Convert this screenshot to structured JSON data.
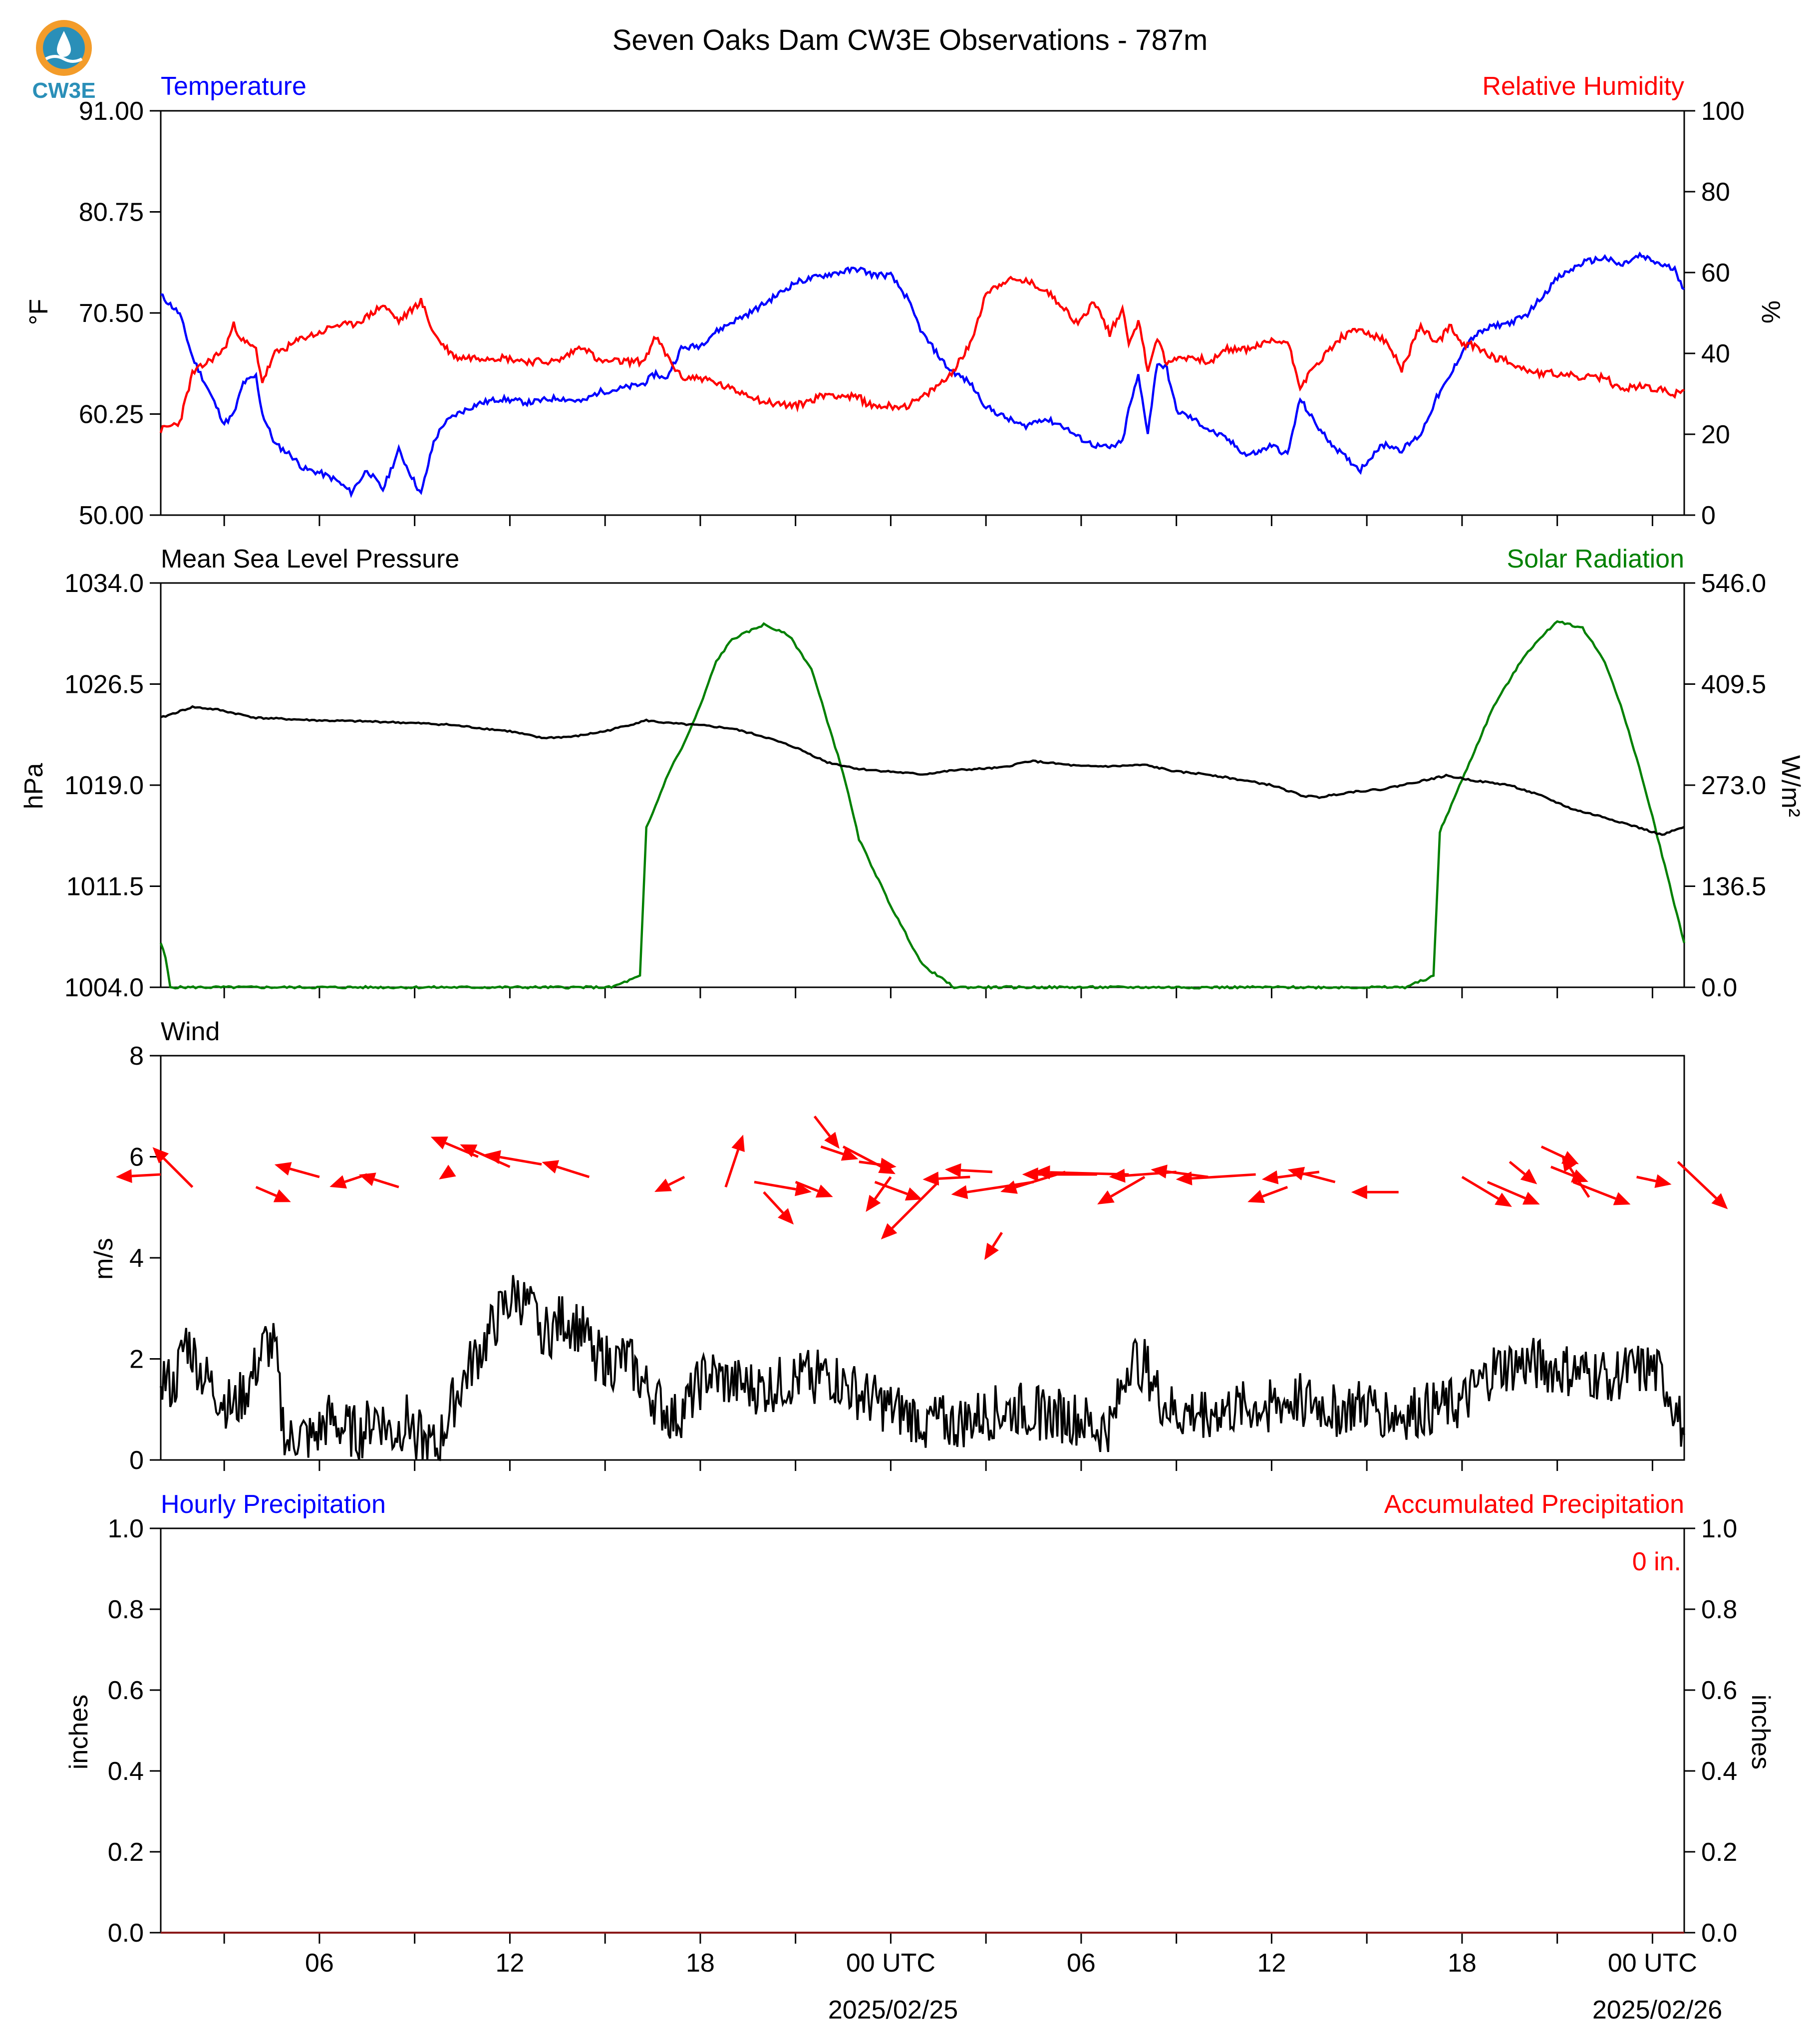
{
  "logo": {
    "text": "CW3E",
    "ring_color": "#f39c2a",
    "inner_color": "#2a8fb8"
  },
  "figure": {
    "title": "Seven Oaks Dam CW3E Observations - 787m"
  },
  "x_axis": {
    "tick_labels": [
      "06",
      "12",
      "18",
      "00 UTC",
      "06",
      "12",
      "18",
      "00 UTC"
    ],
    "date_labels": [
      "2025/02/25",
      "2025/02/26"
    ],
    "tick_hours": [
      6,
      12,
      18,
      24,
      30,
      36,
      42,
      48
    ],
    "minor_tick_hours": [
      3,
      9,
      15,
      21,
      27,
      33,
      39,
      45
    ],
    "range_hours": [
      1,
      49
    ]
  },
  "chart_data": [
    {
      "type": "line",
      "left_title": "Temperature",
      "right_title": "Relative Humidity",
      "ylabel": "°F",
      "ylabel_right": "%",
      "ylim": [
        50,
        91
      ],
      "ylim_right": [
        0,
        100
      ],
      "yticks": [
        "91.00",
        "80.75",
        "70.50",
        "60.25",
        "50.00"
      ],
      "yticks_right": [
        "100",
        "80",
        "60",
        "40",
        "20",
        "0"
      ],
      "colors": {
        "left": "#0000ff",
        "right": "#ff0000"
      },
      "x_hours": [
        1,
        1.6,
        2,
        2.5,
        3,
        3.3,
        3.6,
        4,
        4.2,
        4.6,
        5.1,
        5.5,
        6,
        6.5,
        7,
        7.5,
        8,
        8.5,
        8.8,
        9.2,
        9.6,
        9.9,
        10.3,
        11,
        11.7,
        12.6,
        13.5,
        14.3,
        14.8,
        15.3,
        16.2,
        16.6,
        16.9,
        17.4,
        18,
        18.4,
        19,
        19.5,
        20,
        21,
        22,
        23,
        23.4,
        24,
        24.5,
        25,
        25.8,
        26.5,
        27,
        27.6,
        28.2,
        28.8,
        29.4,
        29.9,
        30.4,
        30.9,
        31.3,
        31.5,
        31.8,
        32.1,
        32.4,
        32.7,
        33,
        33.5,
        34.1,
        34.6,
        35.2,
        35.6,
        36,
        36.5,
        36.9,
        37.2,
        37.6,
        38.2,
        38.8,
        39.3,
        39.6,
        40.1,
        40.7,
        41.2,
        41.6,
        42,
        42.4,
        43,
        43.5,
        44,
        44.5,
        45,
        45.8,
        46.5,
        47,
        47.6,
        48.2,
        48.7,
        49
      ],
      "series": [
        {
          "name": "Temperature",
          "axis": "left",
          "values": [
            72.3,
            70.4,
            66,
            62.7,
            59.3,
            60.2,
            63.4,
            64.1,
            60.3,
            57.2,
            56.1,
            54.7,
            54.3,
            53.6,
            52.3,
            54.6,
            52.6,
            56.6,
            54.6,
            52.1,
            57.4,
            59.2,
            60.2,
            61.3,
            61.8,
            61.4,
            61.9,
            61.5,
            62.5,
            62.7,
            63.3,
            64.4,
            63.7,
            66.9,
            67.2,
            68.4,
            69.6,
            70.4,
            71.4,
            73.6,
            74.4,
            75,
            74.4,
            74.3,
            72.1,
            68.4,
            64.9,
            63.4,
            61,
            59.9,
            59,
            59.8,
            59.1,
            57.9,
            57.1,
            56.8,
            57.4,
            60.7,
            64.1,
            58.4,
            65.5,
            64.8,
            60.6,
            59.8,
            58.5,
            57.7,
            56.1,
            56.4,
            57.1,
            56.1,
            61.8,
            60.2,
            58.3,
            56.2,
            54.6,
            56.6,
            57.2,
            56.6,
            58.2,
            61.9,
            63.9,
            66.6,
            68.2,
            69.2,
            69.5,
            70.2,
            72.1,
            74,
            75.6,
            76.1,
            75.3,
            76.3,
            75.5,
            74.9,
            72.9
          ]
        },
        {
          "name": "Relative Humidity",
          "axis": "right",
          "values": [
            21,
            23,
            35,
            38,
            41,
            47,
            43,
            41,
            33,
            40,
            42,
            44,
            45,
            47,
            47,
            49,
            52,
            48,
            50,
            53,
            45,
            42,
            39,
            39,
            39,
            38,
            38,
            42,
            38,
            38,
            38,
            44,
            40,
            34,
            34,
            33,
            31,
            30,
            28,
            27,
            30,
            29,
            27,
            27,
            27,
            29,
            34,
            42,
            55,
            58,
            58,
            56,
            52,
            47,
            53,
            45,
            51,
            43,
            48,
            36,
            44,
            37,
            39,
            39,
            38,
            41,
            41,
            42,
            43,
            43,
            32,
            35,
            39,
            44,
            46,
            44,
            43,
            36,
            47,
            42,
            47,
            42,
            42,
            39,
            38,
            36,
            35,
            35,
            34,
            34,
            31,
            32,
            31,
            30,
            31
          ]
        }
      ]
    },
    {
      "type": "line",
      "left_title": "Mean Sea Level Pressure",
      "right_title": "Solar Radiation",
      "ylabel": "hPa",
      "ylabel_right": "W/m²",
      "ylim": [
        1004,
        1034
      ],
      "ylim_right": [
        0,
        546
      ],
      "yticks": [
        "1034.0",
        "1026.5",
        "1019.0",
        "1011.5",
        "1004.0"
      ],
      "yticks_right": [
        "546.0",
        "409.5",
        "273.0",
        "136.5",
        "0.0"
      ],
      "colors": {
        "left": "#000000",
        "right": "#008000"
      },
      "pressure": {
        "name": "Mean Sea Level Pressure",
        "x_hours": [
          1,
          2,
          2.8,
          4,
          6,
          8,
          10,
          12,
          13,
          14,
          15,
          16.3,
          17,
          18.2,
          19,
          20,
          21,
          22,
          23,
          24,
          25,
          26,
          27.5,
          28.4,
          30,
          31,
          32,
          33,
          34,
          35,
          36,
          37,
          37.5,
          38.5,
          39.5,
          40.5,
          41.5,
          42.5,
          43.5,
          44.5,
          45.5,
          46.5,
          47.5,
          48.3,
          49
        ],
        "values": [
          1024,
          1024.8,
          1024.6,
          1024.0,
          1023.8,
          1023.7,
          1023.5,
          1023.0,
          1022.5,
          1022.6,
          1023.0,
          1023.8,
          1023.6,
          1023.4,
          1023.2,
          1022.6,
          1021.8,
          1020.7,
          1020.2,
          1020.0,
          1019.8,
          1020.1,
          1020.3,
          1020.8,
          1020.4,
          1020.4,
          1020.5,
          1020.0,
          1019.8,
          1019.4,
          1019.0,
          1018.2,
          1018.1,
          1018.5,
          1018.7,
          1019.2,
          1019.7,
          1019.3,
          1019.0,
          1018.2,
          1017.2,
          1016.6,
          1015.9,
          1015.3,
          1015.9
        ]
      },
      "solar": {
        "name": "Solar Radiation",
        "x_hours": [
          1,
          1.15,
          1.3,
          15.2,
          16.1,
          16.3,
          16.5,
          17,
          17.5,
          18,
          18.5,
          19,
          20,
          20.8,
          21.5,
          22,
          22.5,
          23,
          24,
          25,
          26,
          26.2,
          40.2,
          41.1,
          41.3,
          41.5,
          42,
          43,
          44,
          45,
          45.8,
          46.5,
          47,
          47.5,
          48,
          49
        ],
        "values": [
          60,
          40,
          0,
          0,
          15,
          215,
          235,
          290,
          330,
          380,
          440,
          470,
          490,
          475,
          430,
          360,
          290,
          200,
          110,
          30,
          0,
          0,
          0,
          15,
          210,
          230,
          280,
          380,
          450,
          495,
          485,
          440,
          380,
          310,
          230,
          60
        ]
      }
    },
    {
      "type": "line",
      "left_title": "Wind",
      "ylabel": "m/s",
      "ylim": [
        0,
        8
      ],
      "yticks": [
        "8",
        "6",
        "4",
        "2",
        "0"
      ],
      "colors": {
        "speed": "#000000",
        "barb": "#ff0000"
      },
      "speed": {
        "name": "Wind",
        "x_hours": [
          1,
          1.4,
          1.8,
          2.3,
          2.8,
          3.3,
          3.8,
          4.3,
          4.6,
          4.8,
          5,
          5.3,
          5.8,
          6.3,
          6.8,
          7.3,
          7.8,
          8.3,
          8.8,
          9.3,
          9.7,
          10.2,
          10.7,
          11.2,
          11.7,
          12.2,
          12.7,
          13.2,
          13.7,
          14.2,
          14.7,
          15.2,
          15.7,
          16.2,
          16.7,
          17.2,
          17.7,
          18.2,
          19,
          20,
          21,
          22,
          23,
          24,
          25,
          26,
          27,
          28,
          29,
          30,
          30.5,
          31,
          31.5,
          32,
          32.5,
          33,
          34,
          35,
          36,
          37,
          38,
          39,
          40,
          41,
          42,
          43,
          44,
          45,
          46,
          47,
          48,
          48.5,
          49
        ],
        "values": [
          1.7,
          1.4,
          2.4,
          1.7,
          1.3,
          1.0,
          1.5,
          2.3,
          2.2,
          0.9,
          0.3,
          0.5,
          0.4,
          0.8,
          0.6,
          0.5,
          0.9,
          0.5,
          0.8,
          0.3,
          0.2,
          1.1,
          1.8,
          2.3,
          2.9,
          3.3,
          2.9,
          2.5,
          2.8,
          2.6,
          2.1,
          1.9,
          2.0,
          1.5,
          1.1,
          0.8,
          1.2,
          1.7,
          1.5,
          1.4,
          1.6,
          1.7,
          1.3,
          1.0,
          0.8,
          0.7,
          0.9,
          1.0,
          0.9,
          0.8,
          0.6,
          0.7,
          2.0,
          1.9,
          1.2,
          0.9,
          1.0,
          1.0,
          1.1,
          1.2,
          1.0,
          1.1,
          0.9,
          1.0,
          1.1,
          1.8,
          1.9,
          1.8,
          1.7,
          1.7,
          1.8,
          1.4,
          0.5
        ]
      },
      "barbs": {
        "x_hours": [
          1,
          2,
          4,
          6,
          7.5,
          8.5,
          10,
          11,
          12,
          13,
          14.5,
          17.5,
          18.8,
          19.7,
          20,
          21,
          21.6,
          21.8,
          22.5,
          23,
          23.5,
          24,
          25.5,
          26.5,
          27.2,
          27.5,
          28.5,
          29.5,
          30.5,
          31.5,
          32,
          33,
          34,
          35.5,
          36.5,
          37.5,
          38,
          40,
          42,
          42.8,
          43.5,
          44.5,
          44.8,
          45.5,
          46,
          47.5,
          48.8
        ],
        "y_values": [
          5.65,
          5.4,
          5.4,
          5.6,
          5.65,
          5.4,
          5.65,
          6.0,
          5.8,
          5.85,
          5.6,
          5.6,
          5.4,
          5.5,
          5.3,
          5.5,
          6.8,
          6.2,
          6.2,
          5.9,
          5.5,
          5.6,
          5.5,
          5.6,
          5.7,
          4.5,
          5.5,
          5.7,
          5.65,
          5.65,
          5.6,
          5.7,
          5.6,
          5.65,
          5.4,
          5.7,
          5.5,
          5.3,
          5.6,
          5.5,
          5.9,
          6.2,
          5.8,
          5.5,
          5.2,
          5.6,
          5.9
        ],
        "u_ms": [
          -1.8,
          -1.6,
          1.4,
          -1.8,
          -1.5,
          -1.6,
          -0.3,
          -1.9,
          -2.0,
          -2.3,
          -1.9,
          -1.2,
          0.7,
          2.3,
          1.2,
          1.5,
          1.0,
          1.5,
          2.1,
          1.5,
          1.9,
          -1.0,
          -2.3,
          -1.9,
          -1.9,
          -0.7,
          -3.3,
          -2.6,
          -3.0,
          -3.8,
          -1.9,
          -2.7,
          -2.3,
          -3.2,
          -1.6,
          -2.3,
          -1.9,
          -1.9,
          2.0,
          2.1,
          1.1,
          1.5,
          1.5,
          2.3,
          -1.1,
          1.4,
          2.0
        ],
        "v_ms": [
          -0.1,
          1.6,
          -0.6,
          0.5,
          -0.5,
          0.5,
          -0.2,
          0.8,
          0.9,
          0.4,
          0.6,
          -0.6,
          2.1,
          -0.4,
          -1.3,
          -0.6,
          -1.3,
          -0.5,
          -1.1,
          -0.2,
          -0.7,
          -1.4,
          -2.3,
          -0.1,
          0.1,
          -1.1,
          -0.5,
          -0.8,
          0.0,
          0.1,
          -1.1,
          -0.2,
          0.3,
          -0.2,
          -0.6,
          -0.3,
          0.5,
          0.0,
          -1.2,
          -0.9,
          -0.9,
          -0.7,
          -0.6,
          -0.9,
          1.7,
          -0.3,
          -1.9
        ]
      }
    },
    {
      "type": "line",
      "left_title": "Hourly Precipitation",
      "right_title": "Accumulated Precipitation",
      "ylabel": "inches",
      "ylabel_right": "inches",
      "ylim": [
        0,
        1
      ],
      "ylim_right": [
        0,
        1
      ],
      "yticks": [
        "1.0",
        "0.8",
        "0.6",
        "0.4",
        "0.2",
        "0.0"
      ],
      "yticks_right": [
        "1.0",
        "0.8",
        "0.6",
        "0.4",
        "0.2",
        "0.0"
      ],
      "colors": {
        "left": "#0000ff",
        "right": "#ff0000"
      },
      "x_hours": [
        1,
        49
      ],
      "series": [
        {
          "name": "Hourly Precipitation",
          "axis": "left",
          "values": [
            0,
            0
          ]
        },
        {
          "name": "Accumulated Precipitation",
          "axis": "right",
          "values": [
            0,
            0
          ]
        }
      ],
      "annotation": "0 in."
    }
  ]
}
